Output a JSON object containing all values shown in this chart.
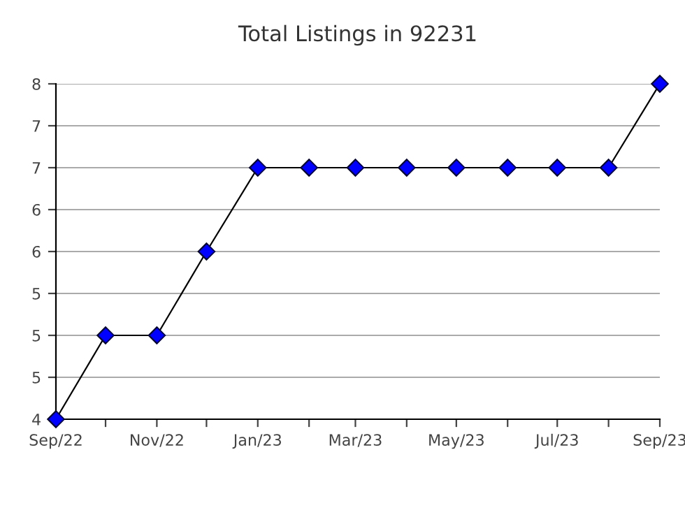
{
  "chart_data": {
    "type": "line",
    "title": "Total Listings in 92231",
    "x": [
      "2022-09",
      "2022-10",
      "2022-11",
      "2022-12",
      "2023-01",
      "2023-02",
      "2023-03",
      "2023-04",
      "2023-05",
      "2023-06",
      "2023-07",
      "2023-08",
      "2023-09"
    ],
    "series": [
      {
        "color": "#0000ff",
        "values": [
          4,
          5,
          5,
          6,
          7,
          7,
          7,
          7,
          7,
          7,
          7,
          7,
          8
        ]
      }
    ],
    "xlim": [
      "2022-09",
      "2023-09"
    ],
    "xticks": [
      {
        "value": "2022-09",
        "label": "Sep/22"
      },
      {
        "value": "2022-10",
        "label": null
      },
      {
        "value": "2022-11",
        "label": "Nov/22"
      },
      {
        "value": "2022-12",
        "label": null
      },
      {
        "value": "2023-01",
        "label": "Jan/23"
      },
      {
        "value": "2023-02",
        "label": null
      },
      {
        "value": "2023-03",
        "label": "Mar/23"
      },
      {
        "value": "2023-04",
        "label": null
      },
      {
        "value": "2023-05",
        "label": "May/23"
      },
      {
        "value": "2023-06",
        "label": null
      },
      {
        "value": "2023-07",
        "label": "Jul/23"
      },
      {
        "value": "2023-08",
        "label": null
      },
      {
        "value": "2023-09",
        "label": "Sep/23"
      }
    ],
    "ylim": [
      4,
      8
    ],
    "yticks": [
      4,
      {
        "value": 4.5,
        "label": "5"
      },
      5,
      {
        "value": 5.5,
        "label": "5"
      },
      6,
      {
        "value": 6.5,
        "label": "6"
      },
      7,
      {
        "value": 7.5,
        "label": "7"
      },
      8
    ],
    "grid": "y",
    "marker": "diamond",
    "line_style": "solid",
    "legend": false
  }
}
